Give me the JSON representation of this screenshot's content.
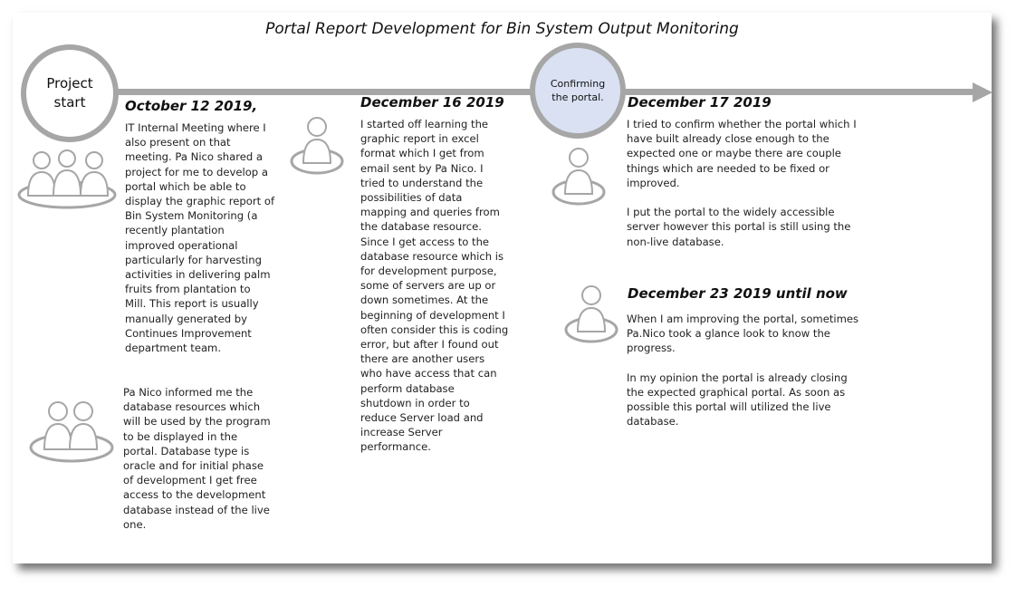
{
  "title": "Portal Report Development for Bin System Output Monitoring",
  "milestones": {
    "start_label": "Project\nstart",
    "confirm_label": "Confirming\nthe portal."
  },
  "entries": {
    "e1": {
      "date": "October 12 2019,",
      "text": "IT Internal Meeting where I\nalso present on that\nmeeting. Pa Nico shared a\nproject for me to develop a\nportal which be able to\ndisplay the graphic report of\nBin System Monitoring (a\nrecently plantation\nimproved operational\nparticularly for harvesting\nactivities in delivering palm\nfruits from plantation to\nMill. This report is usually\nmanually generated by\nContinues Improvement\ndepartment team."
    },
    "e1b": {
      "text": "Pa Nico informed me the\ndatabase resources which\nwill be used by the program\nto be displayed in the\nportal. Database type is\noracle and for initial phase\nof development I get free\naccess to the development\ndatabase instead of the live\none."
    },
    "e2": {
      "date": "December 16 2019",
      "text": "I started off learning the\ngraphic report in excel\nformat which I get from\nemail sent by Pa Nico. I\ntried to understand the\npossibilities of data\nmapping and queries from\nthe database resource.\nSince I get access to the\ndatabase resource which is\nfor development purpose,\nsome of servers are up or\ndown sometimes. At the\nbeginning of development I\noften consider this is coding\nerror, but after I found out\nthere are another users\nwho have access that can\nperform database\nshutdown in order to\nreduce Server load and\nincrease Server\nperformance."
    },
    "e3": {
      "date": "December 17 2019",
      "text": "I tried to confirm whether the portal which I\nhave built already close enough to the\nexpected one or maybe there are couple\nthings which are needed to be fixed or\nimproved.\n\nI put the portal to the widely accessible\nserver however this portal is still using the\nnon-live database."
    },
    "e4": {
      "date": "December 23 2019 until now",
      "text": "When I am improving the portal, sometimes\nPa.Nico took a glance look to know the\nprogress.\n\nIn my opinion the portal is already closing\nthe expected graphical portal. As soon as\npossible this portal will utilized the live\ndatabase."
    }
  },
  "icons": {
    "group3": "three-people-icon",
    "group2": "two-people-icon",
    "single": "person-icon"
  },
  "colors": {
    "timeline": "#a6a6a6",
    "confirm_fill": "#d9e1f2"
  }
}
